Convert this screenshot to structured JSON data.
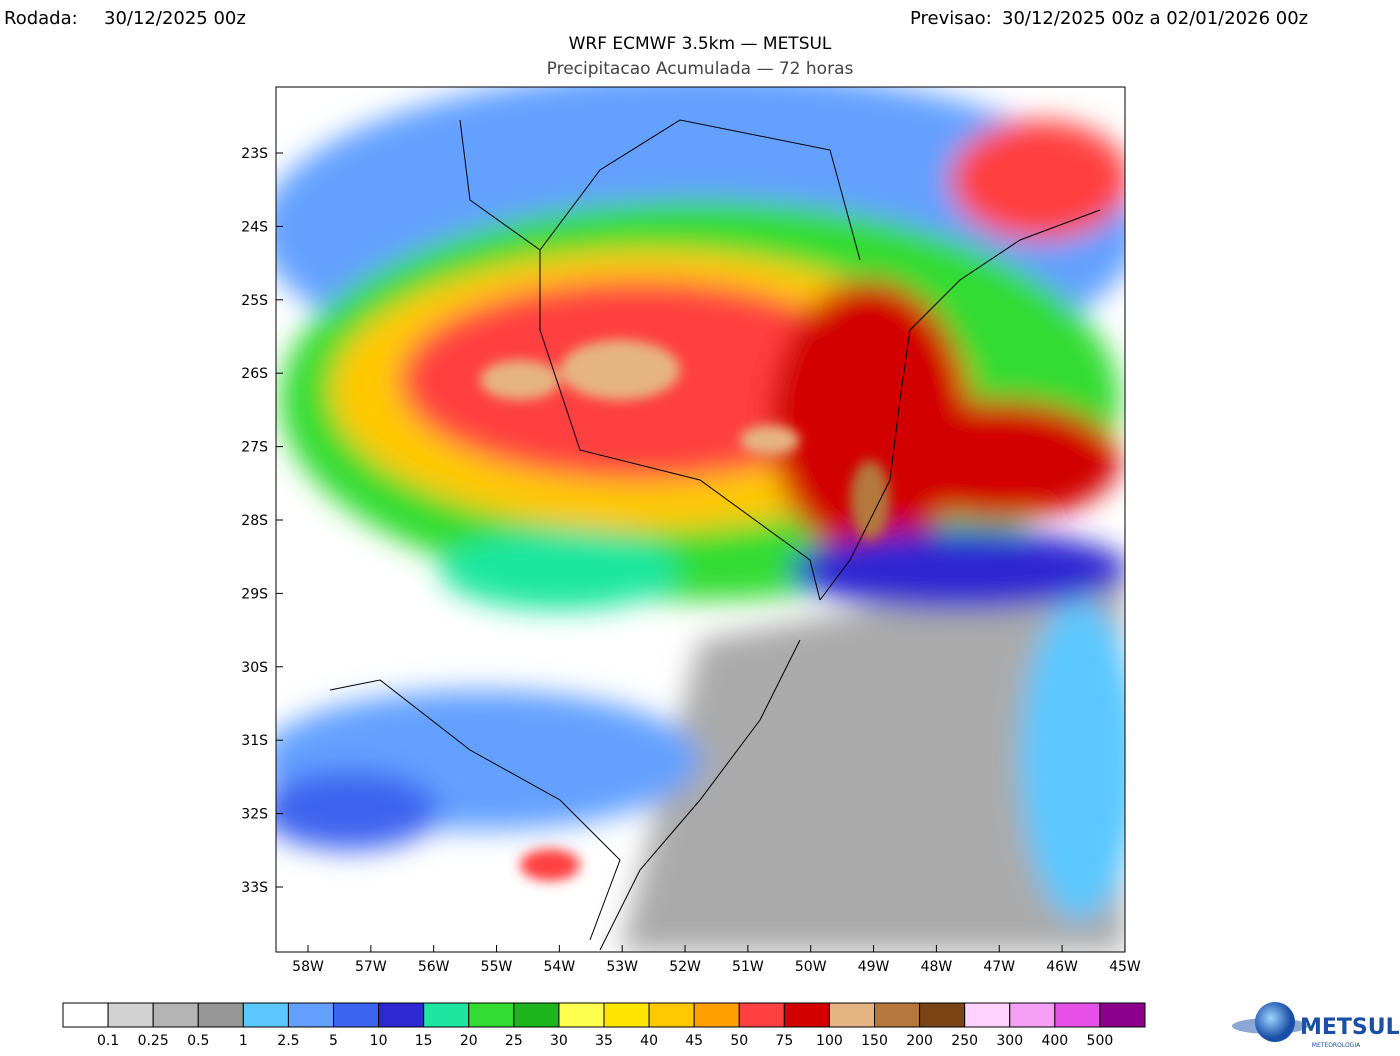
{
  "header": {
    "run_label": "Rodada:",
    "run_value": "30/12/2025 00z",
    "forecast_label": "Previsao:",
    "forecast_value": "30/12/2025 00z a 02/01/2026 00z",
    "title": "WRF ECMWF 3.5km — METSUL",
    "subtitle": "Precipitacao Acumulada — 72 horas"
  },
  "map": {
    "lat_labels": [
      "23S",
      "24S",
      "25S",
      "26S",
      "27S",
      "28S",
      "29S",
      "30S",
      "31S",
      "32S",
      "33S"
    ],
    "lon_labels": [
      "58W",
      "57W",
      "56W",
      "55W",
      "54W",
      "53W",
      "52W",
      "51W",
      "50W",
      "49W",
      "48W",
      "47W",
      "46W",
      "45W"
    ]
  },
  "colorbar": {
    "colors": [
      "#ffffff",
      "#d2d2d2",
      "#b4b4b4",
      "#969696",
      "#5ac8ff",
      "#64a0ff",
      "#3c64f0",
      "#2d28d2",
      "#1ee6a0",
      "#32dc32",
      "#1eb41e",
      "#ffff50",
      "#ffe600",
      "#ffc800",
      "#ffa000",
      "#ff4040",
      "#d20000",
      "#e6b482",
      "#b4783c",
      "#7a4414",
      "#ffd2ff",
      "#f5a0f5",
      "#e650e6",
      "#8c008c"
    ],
    "labels": [
      "0.1",
      "0.25",
      "0.5",
      "1",
      "2.5",
      "5",
      "10",
      "15",
      "20",
      "25",
      "30",
      "35",
      "40",
      "45",
      "50",
      "75",
      "100",
      "150",
      "200",
      "250",
      "300",
      "400",
      "500"
    ]
  },
  "logo": {
    "text": "METSUL",
    "subtext": "METEOROLOGIA"
  }
}
